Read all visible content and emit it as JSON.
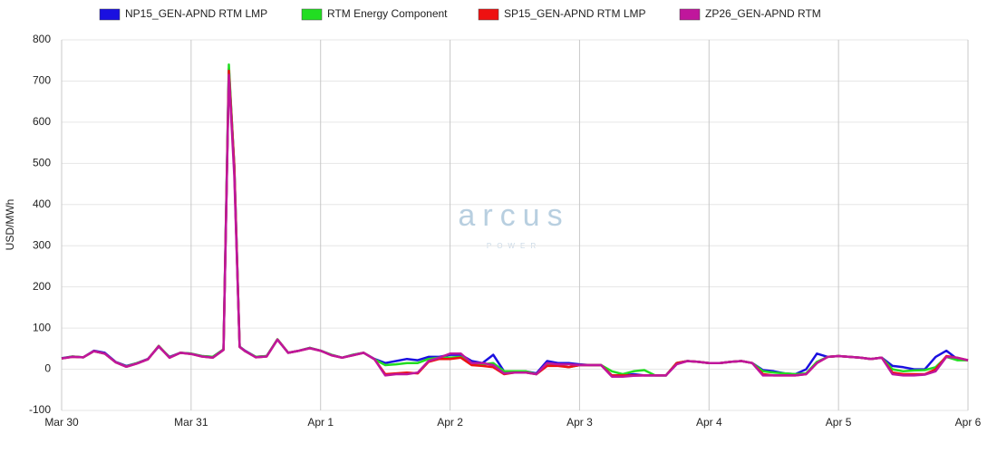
{
  "chart_data": {
    "type": "line",
    "y_label": "USD/MWh",
    "watermark": "arcus",
    "watermark_sub": "POWER",
    "x": [
      0,
      2,
      4,
      6,
      8,
      10,
      12,
      14,
      16,
      18,
      20,
      22,
      24,
      26,
      28,
      30,
      31,
      32,
      33,
      34,
      36,
      38,
      40,
      42,
      44,
      46,
      48,
      50,
      52,
      54,
      56,
      58,
      60,
      62,
      64,
      66,
      68,
      70,
      72,
      74,
      76,
      78,
      80,
      82,
      84,
      86,
      88,
      90,
      92,
      94,
      96,
      98,
      100,
      102,
      104,
      106,
      108,
      110,
      112,
      114,
      116,
      118,
      120,
      122,
      124,
      126,
      128,
      130,
      132,
      134,
      136,
      138,
      140,
      142,
      144,
      146,
      148,
      150,
      152,
      154,
      156,
      158,
      160,
      162,
      164,
      166,
      168
    ],
    "xlim": [
      0,
      168
    ],
    "xticks": [
      {
        "value": 0,
        "label": "Mar 30"
      },
      {
        "value": 24,
        "label": "Mar 31"
      },
      {
        "value": 48,
        "label": "Apr 1"
      },
      {
        "value": 72,
        "label": "Apr 2"
      },
      {
        "value": 96,
        "label": "Apr 3"
      },
      {
        "value": 120,
        "label": "Apr 4"
      },
      {
        "value": 144,
        "label": "Apr 5"
      },
      {
        "value": 168,
        "label": "Apr 6"
      }
    ],
    "ylim": [
      -100,
      800
    ],
    "yticks": [
      -100,
      0,
      100,
      200,
      300,
      400,
      500,
      600,
      700,
      800
    ],
    "grid": true,
    "legend": "top",
    "series": [
      {
        "name": "NP15_GEN-APND RTM LMP",
        "color": "#1a10e0",
        "values": [
          27,
          31,
          29,
          45,
          40,
          18,
          8,
          15,
          25,
          55,
          30,
          40,
          38,
          32,
          30,
          48,
          730,
          495,
          55,
          45,
          30,
          32,
          72,
          40,
          45,
          52,
          45,
          35,
          28,
          35,
          40,
          25,
          15,
          20,
          25,
          22,
          30,
          30,
          35,
          35,
          20,
          15,
          35,
          -5,
          -5,
          -5,
          -10,
          20,
          15,
          15,
          12,
          10,
          10,
          -15,
          -15,
          -12,
          -15,
          -15,
          -15,
          15,
          20,
          18,
          15,
          15,
          18,
          20,
          15,
          -2,
          -5,
          -10,
          -12,
          0,
          38,
          30,
          32,
          30,
          28,
          25,
          28,
          8,
          5,
          0,
          0,
          30,
          45,
          25,
          22
        ]
      },
      {
        "name": "RTM Energy Component",
        "color": "#22dd22",
        "values": [
          26,
          31,
          29,
          44,
          38,
          17,
          7,
          15,
          24,
          57,
          29,
          40,
          38,
          32,
          30,
          48,
          740,
          490,
          55,
          44,
          30,
          32,
          73,
          40,
          45,
          52,
          45,
          35,
          28,
          35,
          40,
          24,
          10,
          12,
          15,
          15,
          25,
          28,
          28,
          30,
          15,
          12,
          15,
          -5,
          -5,
          -5,
          -12,
          10,
          10,
          5,
          10,
          10,
          10,
          -5,
          -12,
          -5,
          -2,
          -15,
          -15,
          15,
          20,
          18,
          15,
          15,
          18,
          20,
          15,
          -5,
          -8,
          -10,
          -12,
          -10,
          18,
          30,
          32,
          30,
          28,
          25,
          28,
          0,
          -5,
          -3,
          -2,
          5,
          30,
          22,
          22
        ]
      },
      {
        "name": "SP15_GEN-APND RTM LMP",
        "color": "#ee1111",
        "values": [
          26,
          30,
          29,
          44,
          38,
          17,
          6,
          14,
          24,
          56,
          28,
          40,
          37,
          31,
          28,
          47,
          725,
          490,
          54,
          44,
          29,
          31,
          72,
          40,
          45,
          51,
          45,
          34,
          28,
          34,
          40,
          24,
          -12,
          -10,
          -8,
          -10,
          18,
          25,
          25,
          28,
          10,
          8,
          5,
          -12,
          -8,
          -8,
          -12,
          8,
          8,
          5,
          10,
          10,
          10,
          -15,
          -15,
          -15,
          -15,
          -15,
          -15,
          15,
          20,
          18,
          15,
          15,
          18,
          20,
          15,
          -12,
          -15,
          -15,
          -15,
          -12,
          15,
          30,
          32,
          30,
          28,
          25,
          28,
          -8,
          -12,
          -12,
          -12,
          0,
          32,
          28,
          22
        ]
      },
      {
        "name": "ZP26_GEN-APND RTM",
        "color": "#c0169c",
        "values": [
          26,
          30,
          29,
          44,
          38,
          17,
          6,
          14,
          24,
          56,
          28,
          40,
          37,
          31,
          28,
          47,
          715,
          470,
          54,
          44,
          29,
          31,
          72,
          40,
          45,
          51,
          45,
          34,
          28,
          34,
          40,
          24,
          -15,
          -12,
          -12,
          -8,
          20,
          28,
          38,
          38,
          15,
          15,
          10,
          -10,
          -8,
          -8,
          -12,
          15,
          12,
          12,
          10,
          10,
          10,
          -18,
          -18,
          -16,
          -15,
          -15,
          -15,
          12,
          20,
          18,
          15,
          15,
          18,
          20,
          15,
          -15,
          -15,
          -15,
          -15,
          -12,
          15,
          30,
          32,
          30,
          28,
          25,
          28,
          -12,
          -15,
          -15,
          -13,
          -5,
          30,
          28,
          22
        ]
      }
    ]
  }
}
